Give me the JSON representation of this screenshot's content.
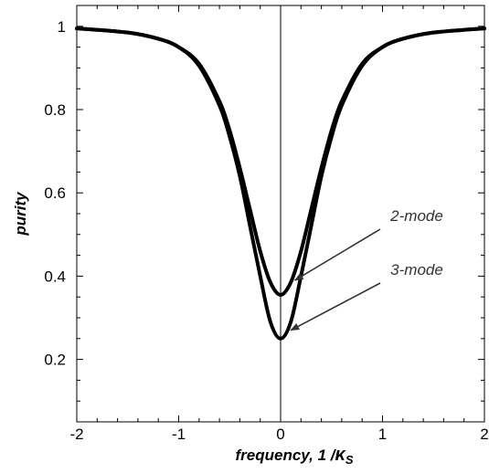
{
  "chart_data": {
    "type": "line",
    "title": "",
    "xlabel_main": "frequency, 1 /",
    "xlabel_kappa": "κ",
    "xlabel_sub": "S",
    "ylabel": "purity",
    "xlim": [
      -2,
      2
    ],
    "ylim": [
      0.05,
      1.05
    ],
    "x_ticks": [
      -2,
      -1,
      0,
      1,
      2
    ],
    "x_tick_labels": [
      "-2",
      "-1",
      "0",
      "1",
      "2"
    ],
    "y_ticks": [
      0.2,
      0.4,
      0.6,
      0.8,
      1.0
    ],
    "y_tick_labels": [
      "0.2",
      "0.4",
      "0.6",
      "0.8",
      "1"
    ],
    "grid": false,
    "legend": "none",
    "line_color": "#000000",
    "series": [
      {
        "name": "2-mode",
        "x": [
          -2.0,
          -1.5,
          -1.2,
          -1.0,
          -0.8,
          -0.6,
          -0.5,
          -0.4,
          -0.3,
          -0.2,
          -0.1,
          0.0,
          0.1,
          0.2,
          0.3,
          0.4,
          0.5,
          0.6,
          0.8,
          1.0,
          1.2,
          1.5,
          2.0
        ],
        "values": [
          0.995,
          0.985,
          0.97,
          0.95,
          0.91,
          0.82,
          0.75,
          0.66,
          0.56,
          0.46,
          0.385,
          0.355,
          0.385,
          0.46,
          0.56,
          0.66,
          0.75,
          0.82,
          0.91,
          0.95,
          0.97,
          0.985,
          0.995
        ]
      },
      {
        "name": "3-mode",
        "x": [
          -2.0,
          -1.5,
          -1.2,
          -1.0,
          -0.8,
          -0.6,
          -0.5,
          -0.4,
          -0.3,
          -0.2,
          -0.1,
          0.0,
          0.1,
          0.2,
          0.3,
          0.4,
          0.5,
          0.6,
          0.8,
          1.0,
          1.2,
          1.5,
          2.0
        ],
        "values": [
          0.995,
          0.985,
          0.97,
          0.95,
          0.905,
          0.81,
          0.735,
          0.64,
          0.52,
          0.4,
          0.29,
          0.25,
          0.29,
          0.4,
          0.52,
          0.64,
          0.735,
          0.81,
          0.905,
          0.95,
          0.97,
          0.985,
          0.995
        ]
      }
    ],
    "annotations": [
      {
        "text": "2-mode",
        "target_x": 0.14,
        "target_y": 0.39
      },
      {
        "text": "3-mode",
        "target_x": 0.1,
        "target_y": 0.27
      }
    ]
  }
}
